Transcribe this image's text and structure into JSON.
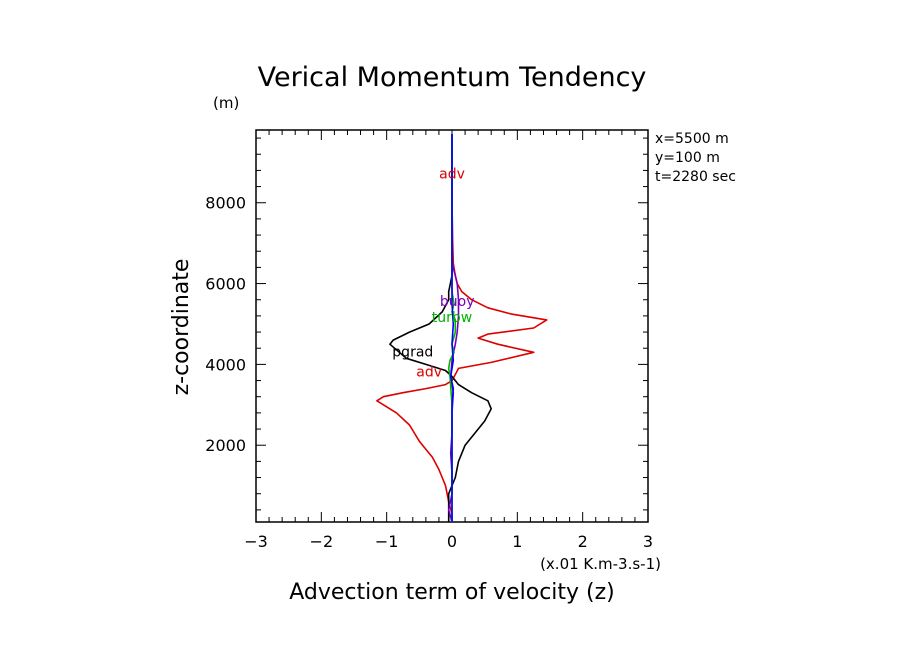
{
  "chart_data": {
    "type": "line",
    "title": "Verical Momentum Tendency",
    "ylabel": "z-coordinate",
    "yunit": "(m)",
    "xlabel": "Advection term of velocity (z)",
    "xunit": "(x.01 K.m-3.s-1)",
    "xlim": [
      -3,
      3
    ],
    "ylim": [
      100,
      9800
    ],
    "xticks": [
      -3,
      -2,
      -1,
      0,
      1,
      2,
      3
    ],
    "yticks": [
      2000,
      4000,
      6000,
      8000
    ],
    "grid": false,
    "info": [
      "x=5500 m",
      "y=100 m",
      "t=2280 sec"
    ],
    "series": [
      {
        "name": "adv",
        "color": "#dd0000",
        "points": [
          [
            0,
            100
          ],
          [
            0,
            300
          ],
          [
            -0.05,
            600
          ],
          [
            -0.1,
            1000
          ],
          [
            -0.2,
            1400
          ],
          [
            -0.3,
            1700
          ],
          [
            -0.5,
            2100
          ],
          [
            -0.65,
            2500
          ],
          [
            -0.85,
            2800
          ],
          [
            -1.05,
            3000
          ],
          [
            -1.15,
            3100
          ],
          [
            -1.05,
            3200
          ],
          [
            -0.75,
            3300
          ],
          [
            -0.4,
            3400
          ],
          [
            -0.1,
            3500
          ],
          [
            0,
            3600
          ],
          [
            0.05,
            3750
          ],
          [
            0.1,
            3900
          ],
          [
            0.6,
            4050
          ],
          [
            1.25,
            4300
          ],
          [
            0.7,
            4500
          ],
          [
            0.4,
            4650
          ],
          [
            0.55,
            4750
          ],
          [
            1.25,
            4900
          ],
          [
            1.45,
            5100
          ],
          [
            0.9,
            5250
          ],
          [
            0.55,
            5400
          ],
          [
            0.3,
            5600
          ],
          [
            0.15,
            5800
          ],
          [
            0.08,
            6000
          ],
          [
            0.05,
            6200
          ],
          [
            0.02,
            6500
          ],
          [
            0.01,
            7000
          ],
          [
            0,
            8000
          ],
          [
            0,
            9700
          ]
        ]
      },
      {
        "name": "pgrad",
        "color": "#000000",
        "points": [
          [
            -0.05,
            100
          ],
          [
            -0.05,
            400
          ],
          [
            -0.05,
            800
          ],
          [
            0.05,
            1200
          ],
          [
            0.1,
            1600
          ],
          [
            0.2,
            2000
          ],
          [
            0.35,
            2300
          ],
          [
            0.5,
            2600
          ],
          [
            0.6,
            2900
          ],
          [
            0.55,
            3100
          ],
          [
            0.3,
            3300
          ],
          [
            0.1,
            3500
          ],
          [
            0,
            3700
          ],
          [
            -0.1,
            3850
          ],
          [
            -0.4,
            4000
          ],
          [
            -0.7,
            4150
          ],
          [
            -0.95,
            4500
          ],
          [
            -0.9,
            4600
          ],
          [
            -0.65,
            4800
          ],
          [
            -0.35,
            5000
          ],
          [
            -0.15,
            5300
          ],
          [
            -0.05,
            5600
          ],
          [
            -0.05,
            5800
          ],
          [
            0,
            6200
          ],
          [
            0,
            7000
          ],
          [
            0,
            8500
          ],
          [
            0,
            9700
          ]
        ]
      },
      {
        "name": "buoy",
        "color": "#7a00b8",
        "points": [
          [
            0,
            100
          ],
          [
            -0.05,
            400
          ],
          [
            0,
            800
          ],
          [
            0,
            1300
          ],
          [
            -0.02,
            1800
          ],
          [
            0,
            2300
          ],
          [
            0,
            2800
          ],
          [
            0.02,
            3300
          ],
          [
            -0.02,
            3700
          ],
          [
            0,
            4100
          ],
          [
            0.05,
            4500
          ],
          [
            0.08,
            4800
          ],
          [
            0.1,
            5200
          ],
          [
            0.1,
            5600
          ],
          [
            0.08,
            6000
          ],
          [
            0.05,
            6200
          ],
          [
            0,
            6500
          ],
          [
            0,
            7000
          ],
          [
            0,
            9700
          ]
        ]
      },
      {
        "name": "turbw",
        "color": "#00b400",
        "points": [
          [
            0,
            100
          ],
          [
            0,
            1000
          ],
          [
            0,
            2000
          ],
          [
            0,
            3000
          ],
          [
            -0.03,
            3700
          ],
          [
            -0.05,
            3900
          ],
          [
            -0.03,
            4100
          ],
          [
            0.03,
            4300
          ],
          [
            0,
            4500
          ],
          [
            0.05,
            4800
          ],
          [
            0.05,
            5100
          ],
          [
            0,
            5300
          ],
          [
            0.03,
            5500
          ],
          [
            0,
            5800
          ],
          [
            0,
            6200
          ],
          [
            0,
            7000
          ],
          [
            0,
            9700
          ]
        ]
      },
      {
        "name": "",
        "color": "#0000ff",
        "points": [
          [
            0,
            100
          ],
          [
            0,
            1000
          ],
          [
            0,
            2000
          ],
          [
            0,
            3000
          ],
          [
            0.02,
            3400
          ],
          [
            -0.02,
            3700
          ],
          [
            0.02,
            4100
          ],
          [
            0,
            4500
          ],
          [
            0.02,
            5000
          ],
          [
            0,
            5500
          ],
          [
            0,
            6200
          ],
          [
            0,
            7000
          ],
          [
            0,
            9700
          ]
        ]
      }
    ],
    "labels": [
      {
        "text": "adv",
        "color": "#dd0000",
        "x": -0.35,
        "y": 3700
      },
      {
        "text": "pgrad",
        "color": "#000000",
        "x": -0.6,
        "y": 4200
      },
      {
        "text": "buoy",
        "color": "#7a00b8",
        "x": 0.08,
        "y": 5450
      },
      {
        "text": "turbw",
        "color": "#00b400",
        "x": 0.0,
        "y": 5050
      },
      {
        "text": "adv",
        "color": "#dd0000",
        "x": 0.0,
        "y": 8600
      }
    ]
  }
}
